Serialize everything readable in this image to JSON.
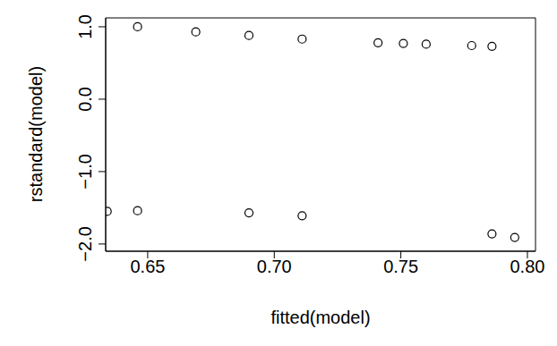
{
  "chart_data": {
    "type": "scatter",
    "x_label": "fitted(model)",
    "y_label": "rstandard(model)",
    "x": [
      0.634,
      0.646,
      0.646,
      0.669,
      0.69,
      0.69,
      0.711,
      0.711,
      0.741,
      0.751,
      0.76,
      0.778,
      0.786,
      0.786,
      0.795
    ],
    "values": [
      -1.55,
      1.0,
      -1.54,
      0.93,
      0.88,
      -1.57,
      0.83,
      -1.61,
      0.78,
      0.77,
      0.76,
      0.74,
      0.73,
      -1.86,
      -1.91
    ],
    "color": "#000000",
    "marker": "circle_open",
    "xlim": [
      0.6334,
      0.8032
    ],
    "ylim": [
      -2.1,
      1.123
    ],
    "xticks": [
      0.65,
      {
        "value": 0.7,
        "label": "0.70"
      },
      0.75,
      {
        "value": 0.8,
        "label": "0.80"
      }
    ],
    "yticks": [
      {
        "value": 1,
        "label": "1.0"
      },
      {
        "value": 0,
        "label": "0.0"
      },
      {
        "value": -1,
        "label": "−1.0"
      },
      {
        "value": -2,
        "label": "−2.0"
      }
    ],
    "grid": false
  }
}
